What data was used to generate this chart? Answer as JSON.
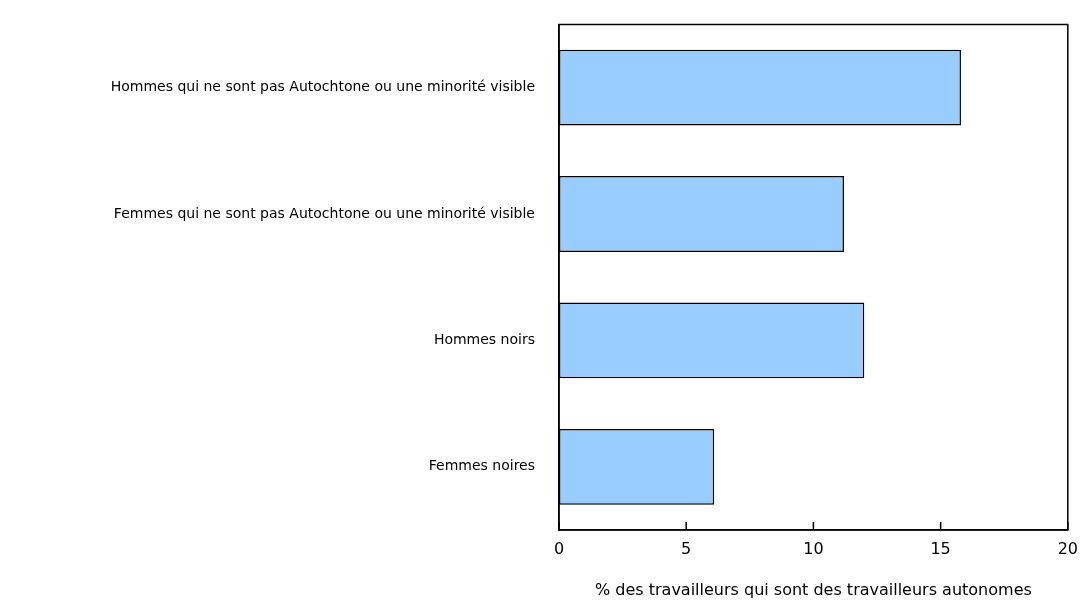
{
  "chart_data": {
    "type": "bar",
    "orientation": "horizontal",
    "xlabel": "% des travailleurs qui sont des travailleurs autonomes",
    "categories": [
      "Hommes qui ne sont pas Autochtone ou une minorité visible",
      "Femmes qui ne sont pas Autochtone ou une minorité visible",
      "Hommes noirs",
      "Femmes noires"
    ],
    "values": [
      15.8,
      11.2,
      12.0,
      6.1
    ],
    "color": "#99ccff",
    "xlim": [
      0,
      20
    ],
    "xticks": [
      0,
      5,
      10,
      15,
      20
    ],
    "grid": false,
    "legend": false
  }
}
